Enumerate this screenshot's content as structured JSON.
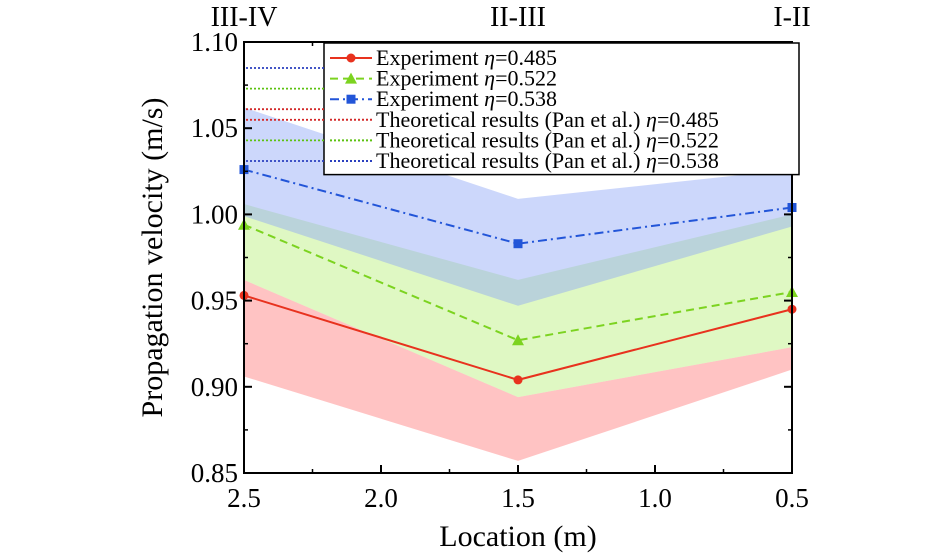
{
  "chart_data": {
    "type": "line",
    "xlabel": "Location (m)",
    "ylabel": "Propagation velocity (m/s)",
    "xlim": [
      2.5,
      0.5
    ],
    "ylim": [
      0.85,
      1.1
    ],
    "x_reversed": true,
    "x_ticks": [
      "2.5",
      "2.0",
      "1.5",
      "1.0",
      "0.5"
    ],
    "y_ticks": [
      "0.85",
      "0.90",
      "0.95",
      "1.00",
      "1.05",
      "1.10"
    ],
    "top_labels": [
      {
        "x": 2.5,
        "text": "III-IV"
      },
      {
        "x": 1.5,
        "text": "II-III"
      },
      {
        "x": 0.5,
        "text": "I-II"
      }
    ],
    "x": [
      2.5,
      1.5,
      0.5
    ],
    "series": [
      {
        "name": "Experiment η=0.485",
        "label_prefix": "Experiment ",
        "eta": "0.485",
        "values": [
          0.953,
          0.904,
          0.945
        ],
        "color": "#e8321e",
        "marker": "circle",
        "dash": "solid"
      },
      {
        "name": "Experiment η=0.522",
        "label_prefix": "Experiment ",
        "eta": "0.522",
        "values": [
          0.994,
          0.927,
          0.955
        ],
        "color": "#7cd320",
        "marker": "triangle",
        "dash": "dashed"
      },
      {
        "name": "Experiment η=0.538",
        "label_prefix": "Experiment ",
        "eta": "0.538",
        "values": [
          1.026,
          0.983,
          1.004
        ],
        "color": "#2255d8",
        "marker": "square",
        "dash": "dashdot"
      }
    ],
    "bands": [
      {
        "name": "Theoretical results (Pan et al.) η=0.485",
        "label_prefix": "Theoretical results (Pan et al.) ",
        "eta": "0.485",
        "lower": [
          0.906,
          0.857,
          0.91
        ],
        "upper": [
          0.962,
          0.894,
          0.923
        ],
        "line_color": "#d42a2a",
        "fill": "#ff7b7b"
      },
      {
        "name": "Theoretical results (Pan et al.) η=0.522",
        "label_prefix": "Theoretical results (Pan et al.) ",
        "eta": "0.522",
        "lower": [
          0.962,
          0.894,
          0.923
        ],
        "upper": [
          1.006,
          0.962,
          1.0
        ],
        "line_color": "#5cc210",
        "fill": "#b8f07a"
      },
      {
        "name": "Theoretical results (Pan et al.) η=0.538",
        "label_prefix": "Theoretical results (Pan et al.) ",
        "eta": "0.538",
        "lower": [
          0.999,
          0.947,
          0.993
        ],
        "upper": [
          1.062,
          1.009,
          1.026
        ],
        "line_color": "#2a3fbf",
        "fill": "#8ea6f6"
      }
    ],
    "legend_position": "top-right",
    "grid": false
  }
}
